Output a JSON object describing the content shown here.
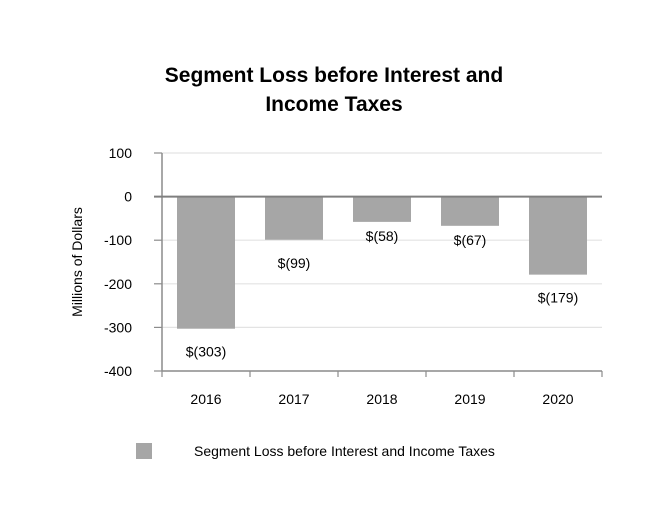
{
  "chart_data": {
    "type": "bar",
    "title_lines": [
      "Segment Loss before Interest and",
      "Income Taxes"
    ],
    "title": "Segment Loss before Interest and Income Taxes",
    "categories": [
      "2016",
      "2017",
      "2018",
      "2019",
      "2020"
    ],
    "values": [
      -303,
      -99,
      -58,
      -67,
      -179
    ],
    "data_labels": [
      "$(303)",
      "$(99)",
      "$(58)",
      "$(67)",
      "$(179)"
    ],
    "xlabel": "",
    "ylabel": "Millions of Dollars",
    "ylim": [
      -400,
      100
    ],
    "yticks": [
      100,
      0,
      -100,
      -200,
      -300,
      -400
    ],
    "ytick_labels": [
      "100",
      "0",
      "-100",
      "-200",
      "-300",
      "-400"
    ],
    "grid": true,
    "legend": {
      "position": "bottom",
      "entries": [
        "Segment Loss before Interest and Income Taxes"
      ]
    },
    "colors": {
      "bar": "#a6a6a6",
      "grid": "#e3e3e3",
      "axis": "#8c8c8c",
      "zero_line": "#7f7f7f"
    }
  }
}
